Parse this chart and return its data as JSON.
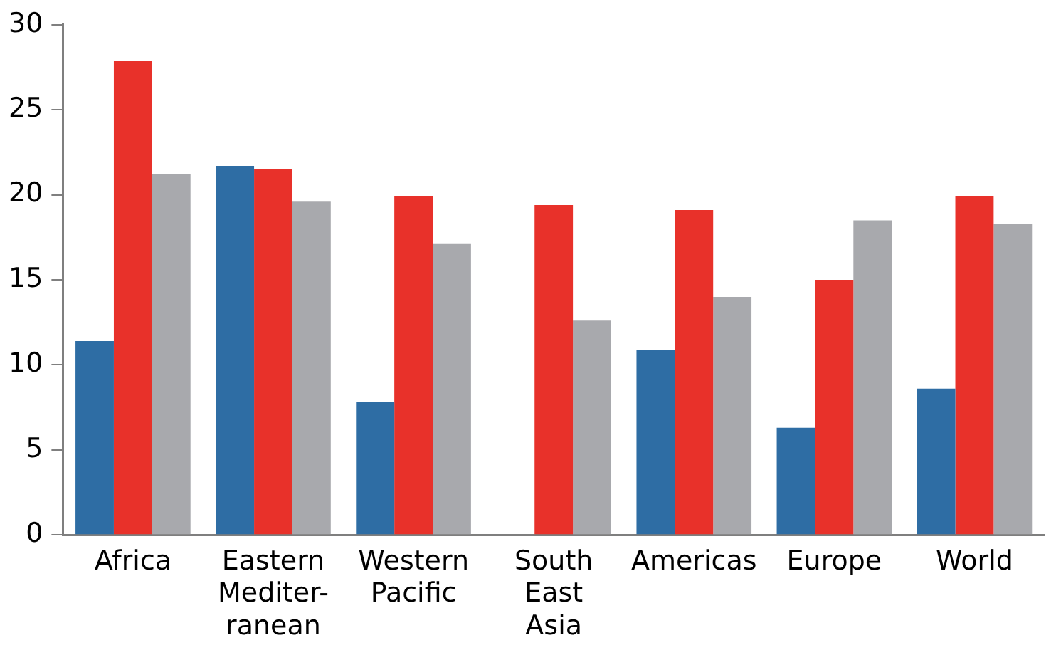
{
  "chart_data": {
    "type": "bar",
    "categories": [
      "Africa",
      "Eastern Mediter-ranean",
      "Western Pacific",
      "South East Asia",
      "Americas",
      "Europe",
      "World"
    ],
    "series": [
      {
        "color": "#2e6da4",
        "values": [
          11.4,
          21.7,
          7.8,
          null,
          10.9,
          6.3,
          8.6
        ]
      },
      {
        "color": "#e8312a",
        "values": [
          27.9,
          21.5,
          19.9,
          19.4,
          19.1,
          15.0,
          19.9
        ]
      },
      {
        "color": "#a8a9ad",
        "values": [
          21.2,
          19.6,
          17.1,
          12.6,
          14.0,
          18.5,
          18.3
        ]
      }
    ],
    "ylim": [
      0,
      30
    ],
    "yticks": [
      0,
      5,
      10,
      15,
      20,
      25,
      30
    ],
    "grid": false,
    "legend": false
  }
}
